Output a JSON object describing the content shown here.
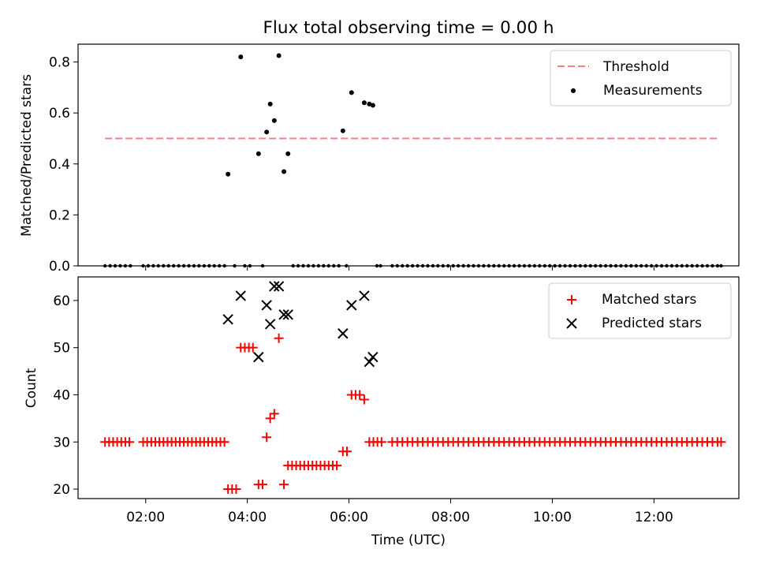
{
  "title": "Flux total observing time = 0.00 h",
  "x_ticks": [
    "02:00",
    "04:00",
    "06:00",
    "08:00",
    "10:00",
    "12:00"
  ],
  "chart_data": [
    {
      "type": "scatter",
      "ylabel": "Matched/Predicted stars",
      "ylim": [
        0,
        0.87
      ],
      "y_ticks": [
        "0.0",
        "0.2",
        "0.4",
        "0.6",
        "0.8"
      ],
      "xlim_hours": [
        0.67,
        13.67
      ],
      "threshold": {
        "name": "Threshold",
        "value": 0.5,
        "x_range": [
          1.2,
          13.3
        ],
        "color": "#ff7f7f"
      },
      "legend": [
        "Threshold",
        "Measurements"
      ],
      "series": [
        {
          "name": "Measurements",
          "color": "#000000",
          "points": [
            [
              3.62,
              0.36
            ],
            [
              3.87,
              0.82
            ],
            [
              4.22,
              0.44
            ],
            [
              4.38,
              0.525
            ],
            [
              4.45,
              0.635
            ],
            [
              4.53,
              0.57
            ],
            [
              4.62,
              0.825
            ],
            [
              4.72,
              0.37
            ],
            [
              4.8,
              0.44
            ],
            [
              5.88,
              0.53
            ],
            [
              6.05,
              0.68
            ],
            [
              6.3,
              0.64
            ],
            [
              6.4,
              0.635
            ],
            [
              6.47,
              0.63
            ]
          ],
          "zero_times": [
            1.2,
            1.3,
            1.4,
            1.5,
            1.6,
            1.7,
            1.95,
            2.05,
            2.15,
            2.25,
            2.35,
            2.45,
            2.55,
            2.65,
            2.75,
            2.85,
            2.95,
            3.05,
            3.15,
            3.25,
            3.35,
            3.45,
            3.55,
            3.75,
            3.95,
            4.05,
            4.3,
            4.9,
            5.0,
            5.1,
            5.2,
            5.3,
            5.4,
            5.5,
            5.6,
            5.7,
            5.8,
            5.95,
            6.55,
            6.62,
            6.85,
            6.95,
            7.05,
            7.15,
            7.25,
            7.35,
            7.45,
            7.55,
            7.65,
            7.75,
            7.85,
            7.95,
            8.05,
            8.15,
            8.25,
            8.35,
            8.45,
            8.55,
            8.65,
            8.75,
            8.85,
            8.95,
            9.05,
            9.15,
            9.25,
            9.35,
            9.45,
            9.55,
            9.65,
            9.75,
            9.85,
            9.95,
            10.05,
            10.15,
            10.25,
            10.35,
            10.45,
            10.55,
            10.65,
            10.75,
            10.85,
            10.95,
            11.05,
            11.15,
            11.25,
            11.35,
            11.45,
            11.55,
            11.65,
            11.75,
            11.85,
            11.95,
            12.05,
            12.15,
            12.25,
            12.35,
            12.45,
            12.55,
            12.65,
            12.75,
            12.85,
            12.95,
            13.05,
            13.15,
            13.25,
            13.32
          ]
        }
      ]
    },
    {
      "type": "scatter",
      "xlabel": "Time (UTC)",
      "ylabel": "Count",
      "ylim": [
        18,
        65
      ],
      "y_ticks": [
        "20",
        "30",
        "40",
        "50",
        "60"
      ],
      "xlim_hours": [
        0.67,
        13.67
      ],
      "legend": [
        "Matched stars",
        "Predicted stars"
      ],
      "series": [
        {
          "name": "Matched stars",
          "color": "#ff0000",
          "marker": "+",
          "points": [
            [
              3.62,
              20
            ],
            [
              3.7,
              20
            ],
            [
              3.78,
              20
            ],
            [
              3.87,
              50
            ],
            [
              3.95,
              50
            ],
            [
              4.03,
              50
            ],
            [
              4.11,
              50
            ],
            [
              4.22,
              21
            ],
            [
              4.3,
              21
            ],
            [
              4.38,
              31
            ],
            [
              4.45,
              35
            ],
            [
              4.53,
              36
            ],
            [
              4.62,
              52
            ],
            [
              4.72,
              21
            ],
            [
              4.8,
              25
            ],
            [
              4.88,
              25
            ],
            [
              4.96,
              25
            ],
            [
              5.04,
              25
            ],
            [
              5.12,
              25
            ],
            [
              5.2,
              25
            ],
            [
              5.28,
              25
            ],
            [
              5.36,
              25
            ],
            [
              5.44,
              25
            ],
            [
              5.52,
              25
            ],
            [
              5.6,
              25
            ],
            [
              5.68,
              25
            ],
            [
              5.76,
              25
            ],
            [
              5.88,
              28
            ],
            [
              5.96,
              28
            ],
            [
              6.05,
              40
            ],
            [
              6.13,
              40
            ],
            [
              6.21,
              40
            ],
            [
              6.3,
              39
            ]
          ],
          "constant_value": 30,
          "constant_times": [
            1.2,
            1.28,
            1.36,
            1.44,
            1.52,
            1.6,
            1.68,
            1.95,
            2.03,
            2.11,
            2.19,
            2.27,
            2.35,
            2.43,
            2.51,
            2.59,
            2.67,
            2.75,
            2.83,
            2.91,
            2.99,
            3.07,
            3.15,
            3.23,
            3.31,
            3.39,
            3.47,
            3.55,
            6.4,
            6.48,
            6.56,
            6.64,
            6.85,
            6.95,
            7.05,
            7.15,
            7.25,
            7.35,
            7.45,
            7.55,
            7.65,
            7.75,
            7.85,
            7.95,
            8.05,
            8.15,
            8.25,
            8.35,
            8.45,
            8.55,
            8.65,
            8.75,
            8.85,
            8.95,
            9.05,
            9.15,
            9.25,
            9.35,
            9.45,
            9.55,
            9.65,
            9.75,
            9.85,
            9.95,
            10.05,
            10.15,
            10.25,
            10.35,
            10.45,
            10.55,
            10.65,
            10.75,
            10.85,
            10.95,
            11.05,
            11.15,
            11.25,
            11.35,
            11.45,
            11.55,
            11.65,
            11.75,
            11.85,
            11.95,
            12.05,
            12.15,
            12.25,
            12.35,
            12.45,
            12.55,
            12.65,
            12.75,
            12.85,
            12.95,
            13.05,
            13.15,
            13.25,
            13.32
          ]
        },
        {
          "name": "Predicted stars",
          "color": "#000000",
          "marker": "x",
          "points": [
            [
              3.62,
              56
            ],
            [
              3.87,
              61
            ],
            [
              4.22,
              48
            ],
            [
              4.38,
              59
            ],
            [
              4.45,
              55
            ],
            [
              4.53,
              63
            ],
            [
              4.62,
              63
            ],
            [
              4.72,
              57
            ],
            [
              4.8,
              57
            ],
            [
              5.88,
              53
            ],
            [
              6.05,
              59
            ],
            [
              6.3,
              61
            ],
            [
              6.4,
              47
            ],
            [
              6.47,
              48
            ]
          ]
        }
      ]
    }
  ]
}
